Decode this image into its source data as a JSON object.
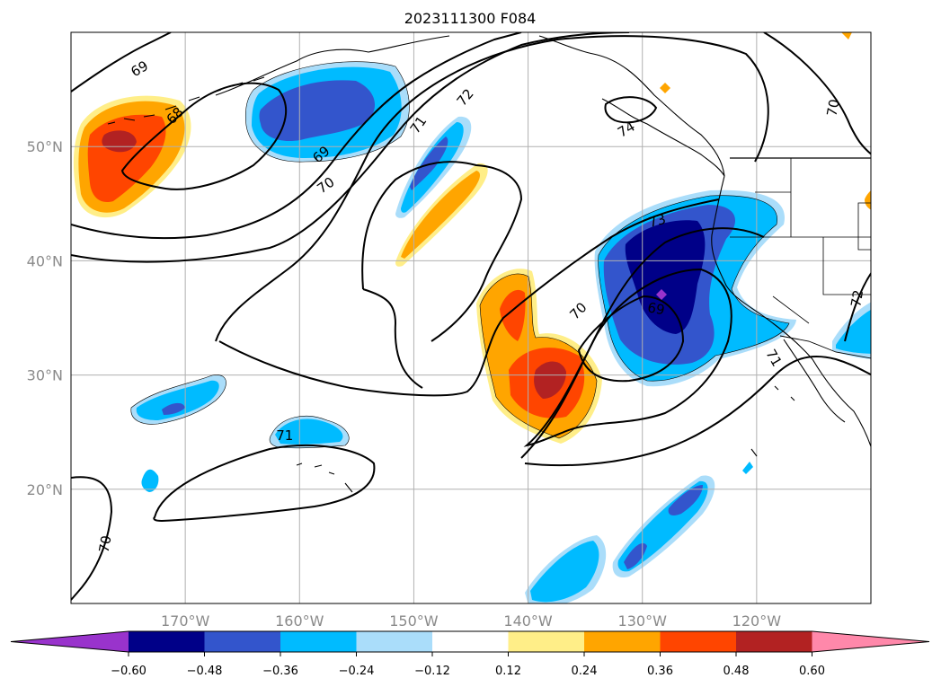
{
  "title": "2023111300 F084",
  "map": {
    "lon_range": [
      -180,
      -110
    ],
    "lat_range": [
      10,
      60
    ],
    "lon_ticks": [
      {
        "value": -170,
        "label": "170°W"
      },
      {
        "value": -160,
        "label": "160°W"
      },
      {
        "value": -150,
        "label": "150°W"
      },
      {
        "value": -140,
        "label": "140°W"
      },
      {
        "value": -130,
        "label": "130°W"
      },
      {
        "value": -120,
        "label": "120°W"
      }
    ],
    "lat_ticks": [
      {
        "value": 20,
        "label": "20°N"
      },
      {
        "value": 30,
        "label": "30°N"
      },
      {
        "value": 40,
        "label": "40°N"
      },
      {
        "value": 50,
        "label": "50°N"
      }
    ],
    "grid": true,
    "colors": {
      "c_neg_max": "#9933cc",
      "c_neg_060": "#000088",
      "c_neg_048": "#3355cc",
      "c_neg_036": "#00bbff",
      "c_neg_024": "#aaddfa",
      "c_pos_012": "#ffee88",
      "c_pos_024": "#ffa500",
      "c_pos_036": "#ff4500",
      "c_pos_048": "#b22222",
      "c_pos_max": "#ff88aa"
    }
  },
  "contour_labels": [
    {
      "text": "69",
      "lon": -174,
      "lat": 56.8,
      "rot": -30
    },
    {
      "text": "68",
      "lon": -170.9,
      "lat": 52.7,
      "rot": -45
    },
    {
      "text": "69",
      "lon": -158.1,
      "lat": 49.3,
      "rot": -40
    },
    {
      "text": "70",
      "lon": -157.7,
      "lat": 46.6,
      "rot": -35
    },
    {
      "text": "71",
      "lon": -149.6,
      "lat": 51.9,
      "rot": -55
    },
    {
      "text": "72",
      "lon": -145.5,
      "lat": 54.3,
      "rot": -50
    },
    {
      "text": "74",
      "lon": -131.4,
      "lat": 51.5,
      "rot": -30
    },
    {
      "text": "70",
      "lon": -113.3,
      "lat": 53.4,
      "rot": -80
    },
    {
      "text": "73",
      "lon": -128.7,
      "lat": 43.5,
      "rot": -15
    },
    {
      "text": "70",
      "lon": -135.6,
      "lat": 35.6,
      "rot": -45
    },
    {
      "text": "69",
      "lon": -128.8,
      "lat": 35.8,
      "rot": 10
    },
    {
      "text": "72",
      "lon": -111.2,
      "lat": 36.7,
      "rot": -80
    },
    {
      "text": "71",
      "lon": -118.5,
      "lat": 31.5,
      "rot": 60
    },
    {
      "text": "71",
      "lon": -161.3,
      "lat": 24.7,
      "rot": 0
    },
    {
      "text": "70",
      "lon": -177,
      "lat": 15.2,
      "rot": -80
    }
  ],
  "colorbar": {
    "ticks": [
      "−0.60",
      "−0.48",
      "−0.36",
      "−0.24",
      "−0.12",
      "0.12",
      "0.24",
      "0.36",
      "0.48",
      "0.60"
    ]
  }
}
